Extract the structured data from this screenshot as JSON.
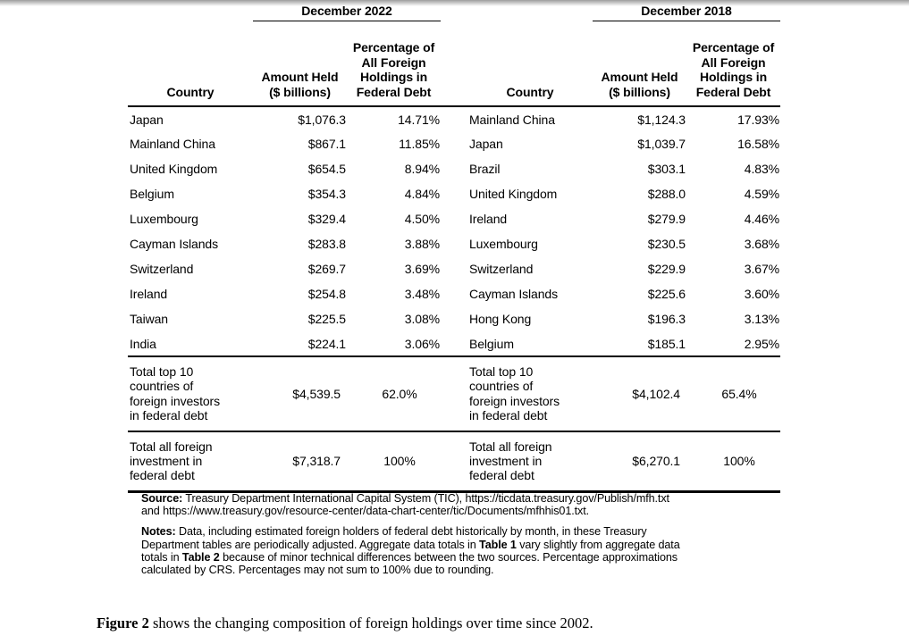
{
  "table": {
    "headers": {
      "country": "Country",
      "amount": "Amount Held\n($ billions)",
      "pct": "Percentage of\nAll Foreign\nHoldings in\nFederal Debt"
    },
    "group_2022": {
      "title": "December 2022",
      "rows": [
        {
          "country": "Japan",
          "amount": "$1,076.3",
          "pct": "14.71%"
        },
        {
          "country": "Mainland China",
          "amount": "$867.1",
          "pct": "11.85%"
        },
        {
          "country": "United Kingdom",
          "amount": "$654.5",
          "pct": "8.94%"
        },
        {
          "country": "Belgium",
          "amount": "$354.3",
          "pct": "4.84%"
        },
        {
          "country": "Luxembourg",
          "amount": "$329.4",
          "pct": "4.50%"
        },
        {
          "country": "Cayman Islands",
          "amount": "$283.8",
          "pct": "3.88%"
        },
        {
          "country": "Switzerland",
          "amount": "$269.7",
          "pct": "3.69%"
        },
        {
          "country": "Ireland",
          "amount": "$254.8",
          "pct": "3.48%"
        },
        {
          "country": "Taiwan",
          "amount": "$225.5",
          "pct": "3.08%"
        },
        {
          "country": "India",
          "amount": "$224.1",
          "pct": "3.06%"
        }
      ],
      "total_top10": {
        "label": "Total top 10\ncountries of\nforeign investors\nin federal debt",
        "amount": "$4,539.5",
        "pct": "62.0%"
      },
      "total_all": {
        "label": "Total all foreign\ninvestment in\nfederal debt",
        "amount": "$7,318.7",
        "pct": "100%"
      }
    },
    "group_2018": {
      "title": "December 2018",
      "rows": [
        {
          "country": "Mainland China",
          "amount": "$1,124.3",
          "pct": "17.93%"
        },
        {
          "country": "Japan",
          "amount": "$1,039.7",
          "pct": "16.58%"
        },
        {
          "country": "Brazil",
          "amount": "$303.1",
          "pct": "4.83%"
        },
        {
          "country": "United Kingdom",
          "amount": "$288.0",
          "pct": "4.59%"
        },
        {
          "country": "Ireland",
          "amount": "$279.9",
          "pct": "4.46%"
        },
        {
          "country": "Luxembourg",
          "amount": "$230.5",
          "pct": "3.68%"
        },
        {
          "country": "Switzerland",
          "amount": "$229.9",
          "pct": "3.67%"
        },
        {
          "country": "Cayman Islands",
          "amount": "$225.6",
          "pct": "3.60%"
        },
        {
          "country": "Hong Kong",
          "amount": "$196.3",
          "pct": "3.13%"
        },
        {
          "country": "Belgium",
          "amount": "$185.1",
          "pct": "2.95%"
        }
      ],
      "total_top10": {
        "label": "Total top 10\ncountries of\nforeign investors\nin federal debt",
        "amount": "$4,102.4",
        "pct": "65.4%"
      },
      "total_all": {
        "label": "Total all foreign\ninvestment in\nfederal debt",
        "amount": "$6,270.1",
        "pct": "100%"
      }
    }
  },
  "source": {
    "label": "Source:",
    "text": " Treasury Department International Capital System (TIC), https://ticdata.treasury.gov/Publish/mfh.txt\nand https://www.treasury.gov/resource-center/data-chart-center/tic/Documents/mfhhis01.txt."
  },
  "notes": {
    "label": "Notes:",
    "seg1": " Data, including estimated foreign holders of federal debt historically by month, in these Treasury\nDepartment tables are periodically adjusted. Aggregate data totals in ",
    "bold1": "Table 1",
    "seg2": " vary slightly from aggregate data\ntotals in ",
    "bold2": "Table 2",
    "seg3": " because of minor technical differences between the two sources. Percentage approximations\ncalculated by CRS. Percentages may not sum to 100% due to rounding."
  },
  "figure_ref": {
    "bold": "Figure 2",
    "text": " shows the changing composition of foreign holdings over time since 2002."
  }
}
